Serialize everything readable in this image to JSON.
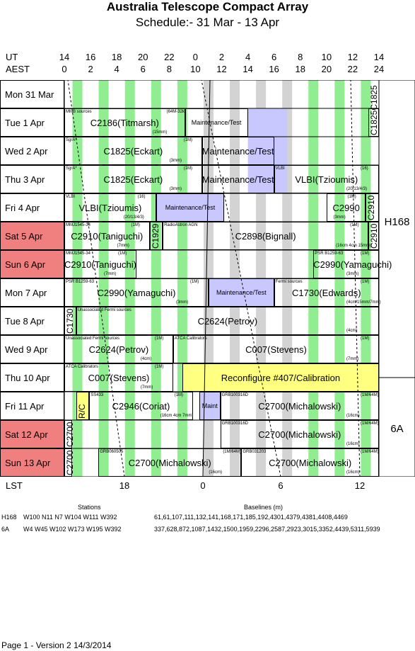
{
  "title": "Australia Telescope Compact Array",
  "subtitle": "Schedule:- 31 Mar - 13 Apr",
  "axes": {
    "ut_label": "UT",
    "aest_label": "AEST",
    "lst_label": "LST",
    "ut_ticks": [
      "14",
      "16",
      "18",
      "20",
      "22",
      "0",
      "2",
      "4",
      "6",
      "8",
      "10",
      "12",
      "14"
    ],
    "aest_ticks": [
      "0",
      "2",
      "4",
      "6",
      "8",
      "10",
      "12",
      "14",
      "16",
      "18",
      "20",
      "22",
      "24"
    ],
    "lst_ticks": [
      "18",
      "0",
      "6",
      "12"
    ]
  },
  "days": [
    {
      "label": "Mon  31 Mar",
      "weekend": false
    },
    {
      "label": "Tue    1  Apr",
      "weekend": false
    },
    {
      "label": "Wed   2  Apr",
      "weekend": false
    },
    {
      "label": "Thu    3  Apr",
      "weekend": false
    },
    {
      "label": "Fri     4  Apr",
      "weekend": false
    },
    {
      "label": "Sat    5  Apr",
      "weekend": true
    },
    {
      "label": "Sun    6  Apr",
      "weekend": true
    },
    {
      "label": "Mon   7  Apr",
      "weekend": false
    },
    {
      "label": "Tue    8  Apr",
      "weekend": false
    },
    {
      "label": "Wed   9  Apr",
      "weekend": false
    },
    {
      "label": "Thu   10  Apr",
      "weekend": false
    },
    {
      "label": "Fri    11  Apr",
      "weekend": false
    },
    {
      "label": "Sat   12  Apr",
      "weekend": true
    },
    {
      "label": "Sun   13  Apr",
      "weekend": true
    }
  ],
  "configs": [
    {
      "name": "H168"
    },
    {
      "name": "6A"
    }
  ],
  "blocks": [
    {
      "row": 1,
      "name": "C2186(Titmarsh)",
      "small": "MMB sources",
      "tag": "(64M-32k)",
      "band": "(15mm)"
    },
    {
      "row": 1,
      "name": "Maintenance/Test"
    },
    {
      "row": 1,
      "name": "C1825C1825"
    },
    {
      "row": 2,
      "name": "C1825(Eckart)",
      "small": "SgrA*",
      "tag": "(1M)",
      "band": "(3mm)"
    },
    {
      "row": 2,
      "name": "Maintenance/Test"
    },
    {
      "row": 3,
      "name": "C1825(Eckart)",
      "small": "SgrA*",
      "tag": "(1M)",
      "band": "(3mm)"
    },
    {
      "row": 3,
      "name": "Maintenance/Test"
    },
    {
      "row": 3,
      "name": "VLBI(Tzioumis)",
      "small": "VLBI",
      "tag": "(16)",
      "band": "(20/13/4/3)"
    },
    {
      "row": 4,
      "name": "VLBI(Tzioumis)",
      "small": "VLBI",
      "tag": "(16)",
      "band": "(20/13/4/3)"
    },
    {
      "row": 4,
      "name": "Maintenance/Test"
    },
    {
      "row": 4,
      "name": "C2990",
      "tag": "(1M)",
      "band": "(3mm)"
    },
    {
      "row": 4,
      "name": "C2910"
    },
    {
      "row": 5,
      "name": "C2910(Taniguchi)",
      "small": "MMJ1545-34",
      "tag": "(1M)",
      "band": "(7mm)"
    },
    {
      "row": 5,
      "name": "C1929"
    },
    {
      "row": 5,
      "name": "C2898(Bignall)",
      "small": "RadioAstron AGN",
      "band": "(16cm 4cm 15mm)",
      "tag": "(1M)"
    },
    {
      "row": 5,
      "name": "C2910"
    },
    {
      "row": 6,
      "name": "C2910(Taniguchi)",
      "small": "MMJ1545-34",
      "tag": "(1M)",
      "band": "(7mm)"
    },
    {
      "row": 6,
      "name": "C2990(Yamaguchi)",
      "small": "PSR B1259-63",
      "tag": "(1M)",
      "band": "(3mm)"
    },
    {
      "row": 7,
      "name": "C2990(Yamaguchi)",
      "small": "PSR B1259-63",
      "tag": "(1M)",
      "band": "(3mm)"
    },
    {
      "row": 7,
      "name": "Maintenance/Test"
    },
    {
      "row": 7,
      "name": "C1730(Edwards)",
      "small": "Fermi sources",
      "tag": "(1M)",
      "band": "(4cm/15mm/7mm)"
    },
    {
      "row": 8,
      "name": "C1730"
    },
    {
      "row": 8,
      "name": "C2624(Petrov)",
      "small": "Unassociated Fermi sources",
      "band": "(4cm)"
    },
    {
      "row": 9,
      "name": "C2624(Petrov)",
      "small": "Unassociated Fermi sources",
      "tag": "(1M)",
      "band": "(4cm)"
    },
    {
      "row": 9,
      "name": "C007(Stevens)",
      "small": "ATCA Calibrators",
      "tag": "(1M)",
      "band": "(7mm)"
    },
    {
      "row": 10,
      "name": "C007(Stevens)",
      "small": "ATCA Calibrators",
      "tag": "(1M)",
      "band": "(7mm)"
    },
    {
      "row": 10,
      "name": "Reconfigure #407/Calibration"
    },
    {
      "row": 11,
      "name": "R/C"
    },
    {
      "row": 11,
      "name": "C2946(Coriat)",
      "small": "SS433",
      "tag": "(1M)",
      "band": "(16cm 4cm 7mm)"
    },
    {
      "row": 11,
      "name": "Maint"
    },
    {
      "row": 11,
      "name": "C2700(Michalowski)",
      "small": "GRB100316D",
      "tag": "(1M/64M)",
      "band": "(16cm)"
    },
    {
      "row": 12,
      "name": "C2700"
    },
    {
      "row": 12,
      "name": "C2700(Michalowski)",
      "small": "GRB100316D",
      "tag": "(1M/64M)",
      "band": "(16cm)"
    },
    {
      "row": 13,
      "name": "C2700"
    },
    {
      "row": 13,
      "name": "C2700(Michalowski)",
      "small": "GRB060505",
      "tag": "(1M/64M)",
      "band": "(16cm)"
    },
    {
      "row": 13,
      "name": "C2700(Michalowski)",
      "small": "GRB031203",
      "tag": "(1M/64M)",
      "band": "(16cm)"
    }
  ],
  "stations_header": "Stations",
  "baselines_header": "Baselines (m)",
  "arrays": [
    {
      "name": "H168",
      "stations": "W100  N11  N7  W104  W111  W392",
      "baselines": "61,61,107,111,132,141,168,171,185,192,4301,4379,4381,4408,4469"
    },
    {
      "name": "6A",
      "stations": "W4  W45  W102  W173  W195  W392",
      "baselines": "337,628,872,1087,1432,1500,1959,2296,2587,2923,3015,3352,4439,5311,5939"
    }
  ],
  "footer": "Page 1 - Version 2  14/3/2014",
  "colors": {
    "green": "#90ee90",
    "gray": "#d3d3d3",
    "blue": "#c8c8ff",
    "yellow": "#ffff80",
    "weekend": "#f08080"
  }
}
